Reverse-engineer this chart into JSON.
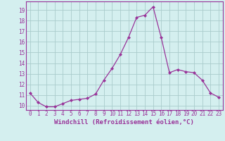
{
  "x": [
    0,
    1,
    2,
    3,
    4,
    5,
    6,
    7,
    8,
    9,
    10,
    11,
    12,
    13,
    14,
    15,
    16,
    17,
    18,
    19,
    20,
    21,
    22,
    23
  ],
  "y": [
    11.2,
    10.3,
    9.9,
    9.9,
    10.2,
    10.5,
    10.6,
    10.7,
    11.1,
    12.4,
    13.5,
    14.8,
    16.4,
    18.3,
    18.5,
    19.3,
    16.4,
    13.1,
    13.4,
    13.2,
    13.1,
    12.4,
    11.2,
    10.8
  ],
  "line_color": "#993399",
  "marker": "D",
  "marker_size": 2.0,
  "background_color": "#d4efef",
  "grid_color": "#aacccc",
  "xlabel": "Windchill (Refroidissement éolien,°C)",
  "xlabel_fontsize": 6.5,
  "ylabel_ticks": [
    10,
    11,
    12,
    13,
    14,
    15,
    16,
    17,
    18,
    19
  ],
  "xtick_labels": [
    "0",
    "1",
    "2",
    "3",
    "4",
    "5",
    "6",
    "7",
    "8",
    "9",
    "10",
    "11",
    "12",
    "13",
    "14",
    "15",
    "16",
    "17",
    "18",
    "19",
    "20",
    "21",
    "22",
    "23"
  ],
  "ylim": [
    9.6,
    19.8
  ],
  "xlim": [
    -0.5,
    23.5
  ],
  "tick_fontsize": 5.5,
  "linewidth": 0.9
}
